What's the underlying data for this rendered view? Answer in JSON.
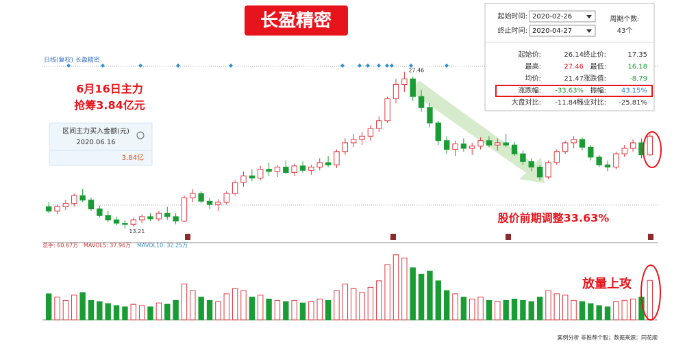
{
  "chart_data": {
    "type": "candlestick",
    "title": "长盈精密",
    "header": "日线(复权)  长盈精密",
    "up_color": "#e0353c",
    "down_color": "#1a9c34",
    "ylim": [
      12,
      29
    ],
    "volume_ylim": [
      0,
      105
    ],
    "candles": [
      [
        15.2,
        15.6,
        14.6,
        14.8
      ],
      [
        14.8,
        15.4,
        14.5,
        15.2
      ],
      [
        15.2,
        15.8,
        14.9,
        15.5
      ],
      [
        15.5,
        16.4,
        15.2,
        16.2
      ],
      [
        16.2,
        16.8,
        15.6,
        15.8
      ],
      [
        15.8,
        16.0,
        14.8,
        15.0
      ],
      [
        15.0,
        15.3,
        14.2,
        14.4
      ],
      [
        14.4,
        14.8,
        13.8,
        14.0
      ],
      [
        14.0,
        14.3,
        13.5,
        13.7
      ],
      [
        13.7,
        14.0,
        13.21,
        13.6
      ],
      [
        13.6,
        14.2,
        13.4,
        14.0
      ],
      [
        14.0,
        14.5,
        13.7,
        14.3
      ],
      [
        14.3,
        14.6,
        13.9,
        14.1
      ],
      [
        14.1,
        14.8,
        13.9,
        14.6
      ],
      [
        14.6,
        15.2,
        14.0,
        14.3
      ],
      [
        14.3,
        14.6,
        13.6,
        13.9
      ],
      [
        13.9,
        16.2,
        13.8,
        16.0
      ],
      [
        16.0,
        16.8,
        15.6,
        16.4
      ],
      [
        16.4,
        16.6,
        15.5,
        15.7
      ],
      [
        15.7,
        16.0,
        15.0,
        15.4
      ],
      [
        15.4,
        15.9,
        14.8,
        15.6
      ],
      [
        15.6,
        16.6,
        15.4,
        16.4
      ],
      [
        16.4,
        17.6,
        16.2,
        17.4
      ],
      [
        17.4,
        18.4,
        17.0,
        18.0
      ],
      [
        18.0,
        18.6,
        17.5,
        17.8
      ],
      [
        17.8,
        18.9,
        17.6,
        18.6
      ],
      [
        18.6,
        19.2,
        18.0,
        18.4
      ],
      [
        18.4,
        19.0,
        17.9,
        18.8
      ],
      [
        18.8,
        19.4,
        18.2,
        18.3
      ],
      [
        18.3,
        19.1,
        18.0,
        18.9
      ],
      [
        18.9,
        19.3,
        18.3,
        18.5
      ],
      [
        18.5,
        19.0,
        18.1,
        18.8
      ],
      [
        18.8,
        19.6,
        18.5,
        19.2
      ],
      [
        19.2,
        19.8,
        18.8,
        19.0
      ],
      [
        19.0,
        20.4,
        18.7,
        20.2
      ],
      [
        20.2,
        21.4,
        19.9,
        21.0
      ],
      [
        21.0,
        21.8,
        20.6,
        21.3
      ],
      [
        21.3,
        22.0,
        20.8,
        21.6
      ],
      [
        21.6,
        22.6,
        21.2,
        22.3
      ],
      [
        22.3,
        23.4,
        22.0,
        23.0
      ],
      [
        23.0,
        25.2,
        22.8,
        25.0
      ],
      [
        25.0,
        26.8,
        24.6,
        26.3
      ],
      [
        26.3,
        27.46,
        25.6,
        26.8
      ],
      [
        26.8,
        27.0,
        24.8,
        25.2
      ],
      [
        25.2,
        25.8,
        23.8,
        24.2
      ],
      [
        24.2,
        24.6,
        22.4,
        22.8
      ],
      [
        22.8,
        23.0,
        20.8,
        21.2
      ],
      [
        21.2,
        21.6,
        20.0,
        20.4
      ],
      [
        20.4,
        21.2,
        19.8,
        20.9
      ],
      [
        20.9,
        21.4,
        20.2,
        20.5
      ],
      [
        20.5,
        21.0,
        19.9,
        20.7
      ],
      [
        20.7,
        21.5,
        20.4,
        21.2
      ],
      [
        21.2,
        21.6,
        20.6,
        20.8
      ],
      [
        20.8,
        21.4,
        20.3,
        21.0
      ],
      [
        21.0,
        21.8,
        20.6,
        20.8
      ],
      [
        20.8,
        21.1,
        19.8,
        20.0
      ],
      [
        20.0,
        20.3,
        19.0,
        19.3
      ],
      [
        19.3,
        19.6,
        18.4,
        18.8
      ],
      [
        18.8,
        19.0,
        17.6,
        17.9
      ],
      [
        17.9,
        19.4,
        17.7,
        19.2
      ],
      [
        19.2,
        20.4,
        19.0,
        20.2
      ],
      [
        20.2,
        21.2,
        20.0,
        21.0
      ],
      [
        21.0,
        21.6,
        20.5,
        21.3
      ],
      [
        21.3,
        21.5,
        20.3,
        20.6
      ],
      [
        20.6,
        20.8,
        19.4,
        19.7
      ],
      [
        19.7,
        19.9,
        18.8,
        19.0
      ],
      [
        19.0,
        19.4,
        18.4,
        18.8
      ],
      [
        18.8,
        20.2,
        18.6,
        20.0
      ],
      [
        20.0,
        20.8,
        19.7,
        20.5
      ],
      [
        20.5,
        21.3,
        20.2,
        21.0
      ],
      [
        21.0,
        21.4,
        19.6,
        19.9
      ],
      [
        19.9,
        21.8,
        19.8,
        21.6
      ]
    ],
    "volume": [
      40,
      35,
      30,
      38,
      42,
      30,
      28,
      25,
      22,
      20,
      24,
      22,
      20,
      26,
      24,
      30,
      55,
      45,
      35,
      30,
      28,
      40,
      48,
      45,
      35,
      38,
      32,
      30,
      28,
      30,
      26,
      28,
      32,
      30,
      45,
      55,
      48,
      42,
      50,
      60,
      85,
      100,
      95,
      80,
      70,
      75,
      60,
      45,
      40,
      35,
      32,
      35,
      30,
      28,
      30,
      32,
      30,
      28,
      35,
      45,
      40,
      38,
      30,
      28,
      25,
      22,
      20,
      28,
      30,
      32,
      35,
      60.67
    ],
    "high_label": "27.46",
    "low_label": "13.21",
    "volume_header": [
      "总手: 60.67万",
      "MAVOL5: 37.96万",
      "MAVOL10: 32.25万"
    ],
    "callout_main": [
      "6月16日主力",
      "抢筹3.84亿元"
    ],
    "info_box": {
      "title": "区间主力买入金额(元)",
      "date": "2020.06.16",
      "amount": "3.84亿"
    },
    "adjust_note": "股价前期调整33.63%",
    "volume_note": "放量上攻",
    "footer": "案例分析  非推荐个股；数据来源：同花顺"
  },
  "stats_panel": {
    "start_label": "起始时间:",
    "start_date": "2020-02-26",
    "end_label": "终止时间:",
    "end_date": "2020-04-27",
    "period_label": "周期个数:",
    "period_count": "43个",
    "rows": [
      [
        "起始价:",
        "26.14",
        "终止价:",
        "17.35"
      ],
      [
        "最高:",
        "27.46",
        "最低:",
        "16.18"
      ],
      [
        "均价:",
        "21.47",
        "涨跌值:",
        "-8.79"
      ],
      [
        "涨跌幅:",
        "-33.63%",
        "振幅:",
        "43.15%"
      ],
      [
        "大盘对比:",
        "-11.84%",
        "行业对比:",
        "-25.81%"
      ]
    ]
  }
}
